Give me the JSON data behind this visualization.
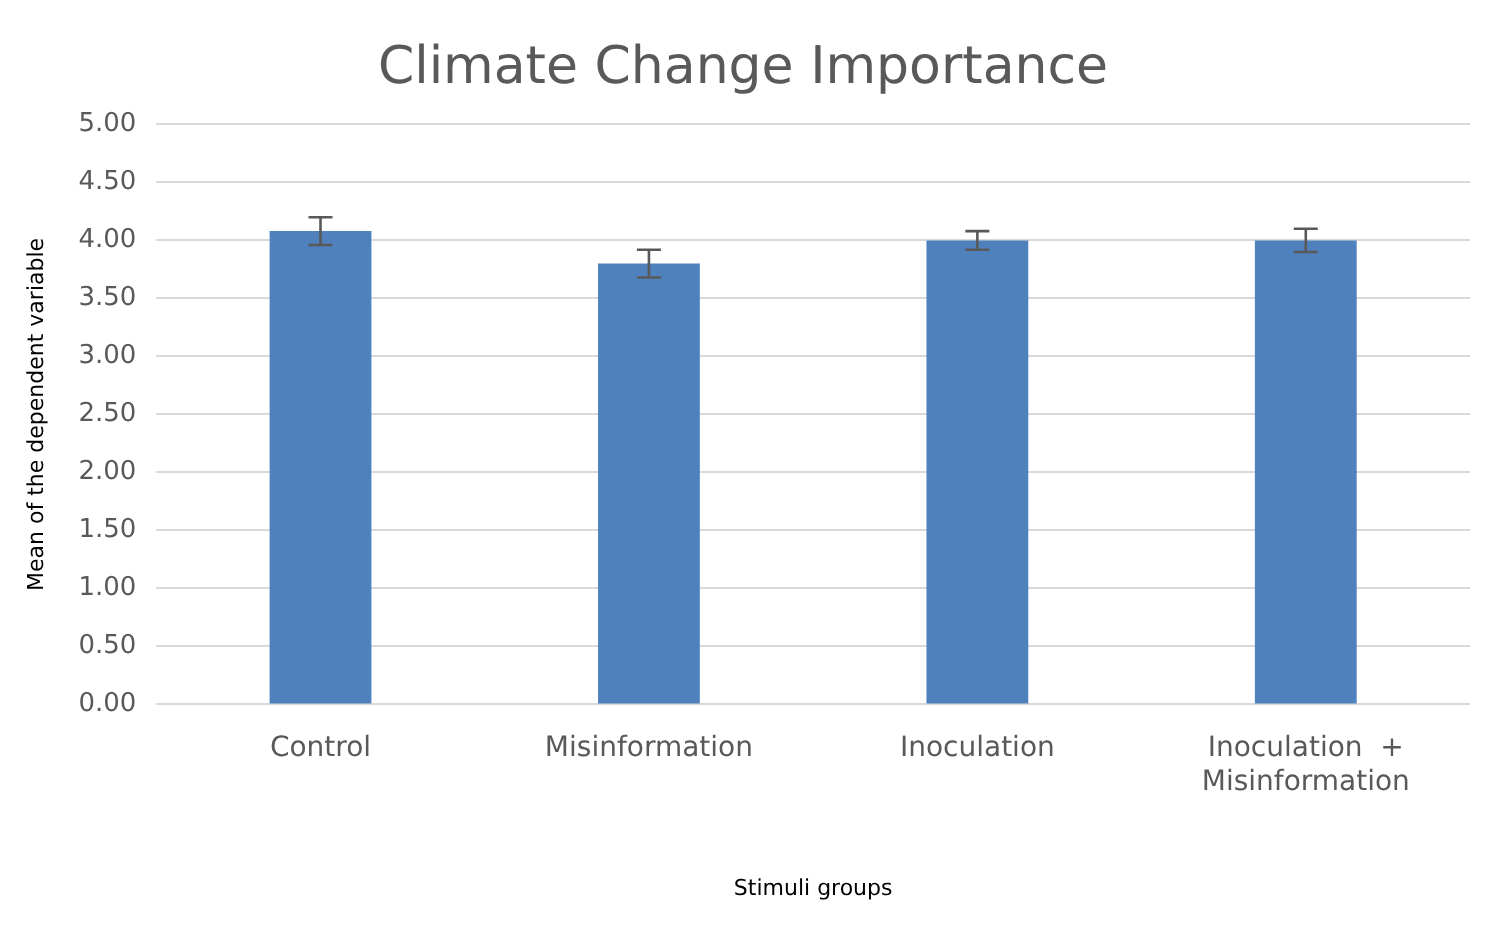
{
  "chart_data": {
    "type": "bar",
    "title": "Climate Change Importance",
    "xlabel": "Stimuli groups",
    "ylabel": "Mean of the dependent variable",
    "categories": [
      "Control",
      "Misinformation",
      "Inoculation",
      "Inoculation  + Misinformation"
    ],
    "values": [
      4.08,
      3.8,
      4.0,
      4.0
    ],
    "errors": [
      0.12,
      0.12,
      0.08,
      0.1
    ],
    "color": "#4f81bd",
    "ylim": [
      0,
      5
    ],
    "yticks": [
      {
        "value": 0,
        "label": "0.00"
      },
      {
        "value": 0.5,
        "label": "0.50"
      },
      {
        "value": 1,
        "label": "1.00"
      },
      {
        "value": 1.5,
        "label": "1.50"
      },
      {
        "value": 2,
        "label": "2.00"
      },
      {
        "value": 2.5,
        "label": "2.50"
      },
      {
        "value": 3,
        "label": "3.00"
      },
      {
        "value": 3.5,
        "label": "3.50"
      },
      {
        "value": 4,
        "label": "4.00"
      },
      {
        "value": 4.5,
        "label": "4.50"
      },
      {
        "value": 5,
        "label": "5.00"
      }
    ],
    "grid": "y",
    "legend": false
  }
}
